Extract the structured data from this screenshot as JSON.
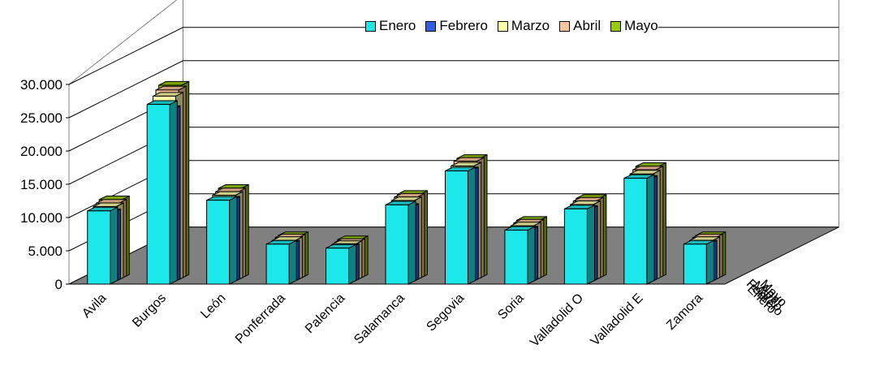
{
  "chart_data": {
    "type": "bar",
    "categories": [
      "Avila",
      "Burgos",
      "León",
      "Ponferrada",
      "Palencia",
      "Salamanca",
      "Segovia",
      "Soria",
      "Valladolid O",
      "Valladolid E",
      "Zamora"
    ],
    "series": [
      {
        "name": "Enero",
        "color": "#1ce8ec",
        "values": [
          11000,
          27000,
          12600,
          6000,
          5400,
          11900,
          17000,
          8100,
          11300,
          15900,
          6000
        ]
      },
      {
        "name": "Febrero",
        "color": "#2d5ef0",
        "values": [
          10500,
          26000,
          12400,
          5800,
          5300,
          11300,
          16800,
          7900,
          11000,
          15500,
          5800
        ]
      },
      {
        "name": "Marzo",
        "color": "#ffffa8",
        "values": [
          11200,
          27800,
          12900,
          6100,
          5500,
          12100,
          17300,
          8300,
          11500,
          16100,
          6100
        ]
      },
      {
        "name": "Abril",
        "color": "#ffc59e",
        "values": [
          11500,
          28500,
          13200,
          6300,
          5600,
          12400,
          17800,
          8500,
          11800,
          16500,
          6300
        ]
      },
      {
        "name": "Mayo",
        "color": "#99cc00",
        "values": [
          11800,
          29000,
          13500,
          6400,
          5800,
          12600,
          18000,
          8700,
          12000,
          16800,
          6400
        ]
      }
    ],
    "y_ticks": [
      "0",
      "5.000",
      "10.000",
      "15.000",
      "20.000",
      "25.000",
      "30.000"
    ],
    "ylim": [
      0,
      30000
    ],
    "depth_labels": [
      "Enero",
      "Febrero",
      "Marzo",
      "Abril",
      "Mayo"
    ],
    "grid": true,
    "legend_position": "top-right"
  }
}
